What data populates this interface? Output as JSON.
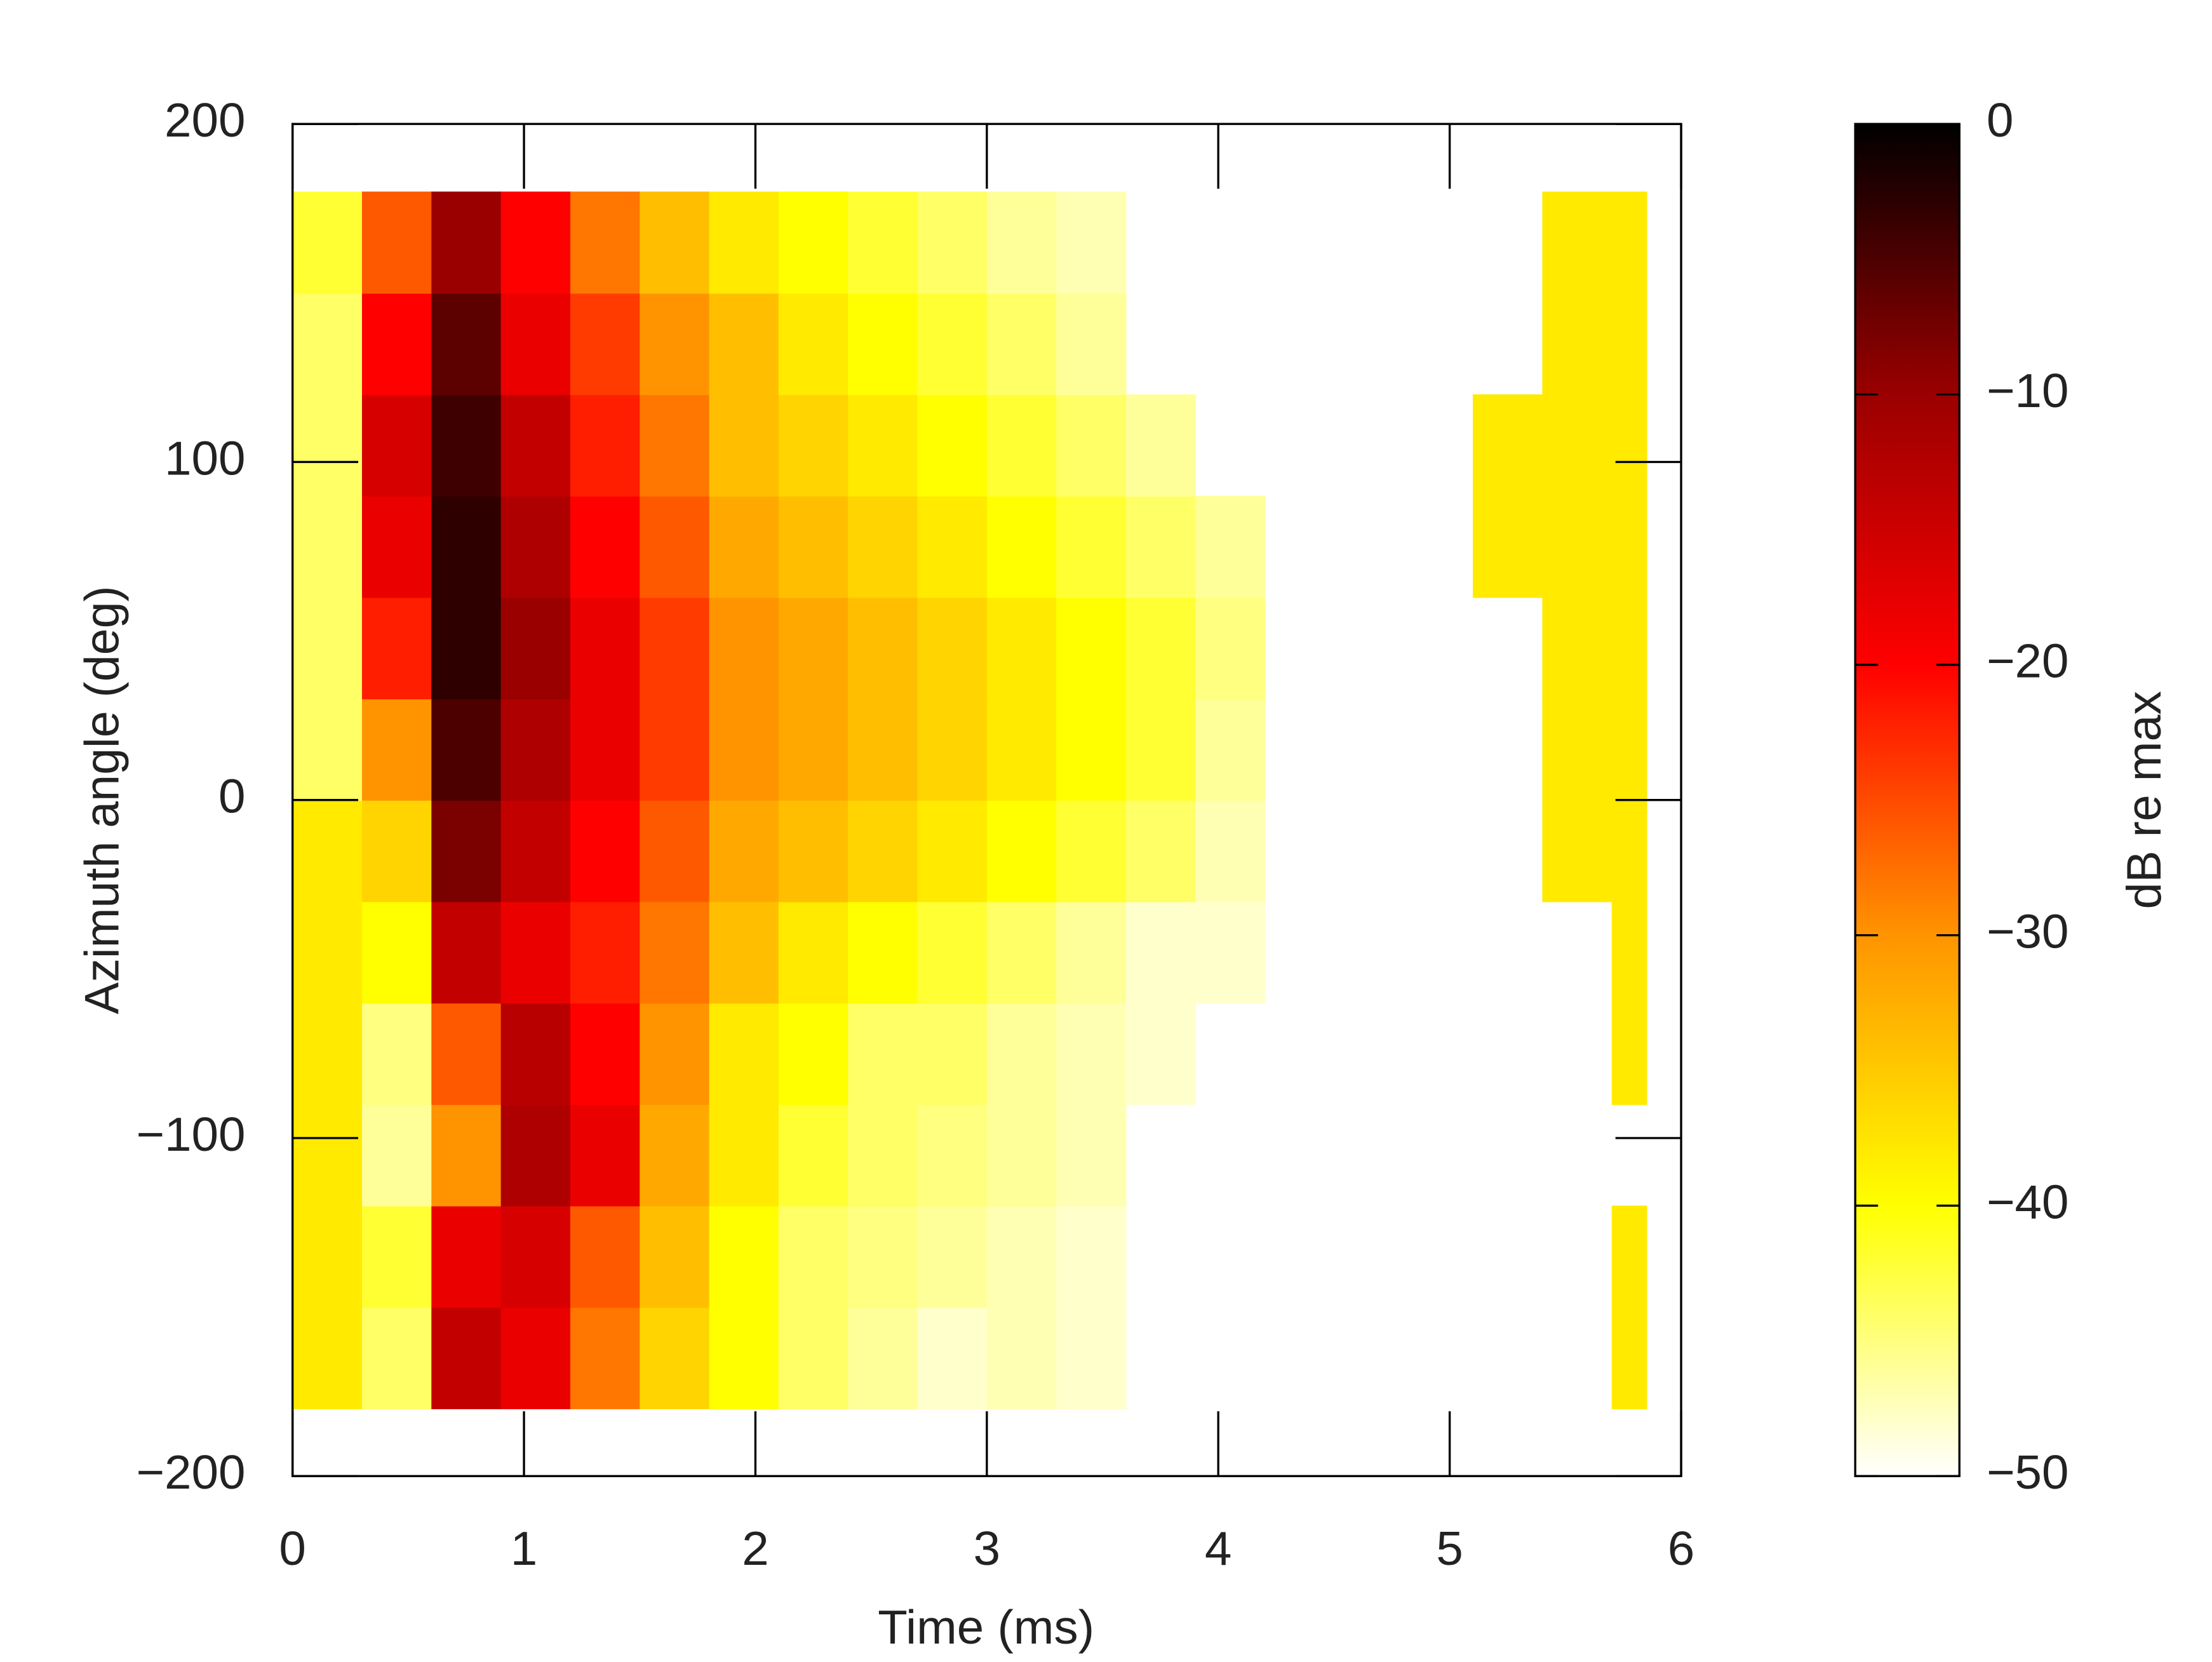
{
  "chart_data": {
    "type": "heatmap",
    "xlabel": "Time (ms)",
    "ylabel": "Azimuth angle (deg)",
    "colorbar_label": "dB re max",
    "xlim": [
      0,
      6
    ],
    "xticks": [
      0,
      1,
      2,
      3,
      4,
      5,
      6
    ],
    "ylim": [
      -200,
      200
    ],
    "yticks": [
      {
        "value": -200,
        "label": "−200"
      },
      {
        "value": -100,
        "label": "−100"
      },
      0,
      100,
      200
    ],
    "clim": [
      -50,
      0
    ],
    "cticks": [
      {
        "value": -50,
        "label": "−50"
      },
      {
        "value": -40,
        "label": "−40"
      },
      {
        "value": -30,
        "label": "−30"
      },
      {
        "value": -20,
        "label": "−20"
      },
      {
        "value": -10,
        "label": "−10"
      },
      0
    ],
    "colormap": [
      {
        "value": -50,
        "color": "#ffffff"
      },
      {
        "value": -40,
        "color": "#ffff00"
      },
      {
        "value": -30,
        "color": "#ff9400"
      },
      {
        "value": -20,
        "color": "#ff0000"
      },
      {
        "value": -10,
        "color": "#9a0000"
      },
      {
        "value": 0,
        "color": "#000000"
      }
    ],
    "x_edges": [
      0,
      0.3,
      0.6,
      0.9,
      1.2,
      1.5,
      1.8,
      2.1,
      2.4,
      2.7,
      3.0,
      3.3,
      3.6,
      3.9,
      4.2,
      4.5,
      4.8,
      5.1,
      5.4,
      5.7,
      5.85
    ],
    "y_edges": [
      -180,
      -150,
      -120,
      -90,
      -60,
      -30,
      0,
      30,
      60,
      90,
      120,
      150,
      180
    ],
    "z": [
      [
        -38,
        -44,
        -14,
        -18,
        -28,
        -36,
        -40,
        -44,
        -46,
        -48,
        -47,
        -48,
        null,
        null,
        null,
        null,
        null,
        null,
        null,
        -38
      ],
      [
        -38,
        -42,
        -18,
        -16,
        -26,
        -34,
        -40,
        -44,
        -45,
        -46,
        -47,
        -48,
        null,
        null,
        null,
        null,
        null,
        null,
        null,
        -38
      ],
      [
        -38,
        -46,
        -30,
        -12,
        -18,
        -32,
        -38,
        -42,
        -44,
        -45,
        -46,
        -47,
        null,
        null,
        null,
        null,
        null,
        null,
        null,
        null
      ],
      [
        -38,
        -45,
        -26,
        -13,
        -20,
        -30,
        -38,
        -40,
        -44,
        -44,
        -46,
        -47,
        -48,
        null,
        null,
        null,
        null,
        null,
        null,
        -38
      ],
      [
        -38,
        -40,
        -14,
        -18,
        -22,
        -28,
        -34,
        -38,
        -40,
        -42,
        -44,
        -46,
        -48,
        -48,
        null,
        null,
        null,
        null,
        null,
        -38
      ],
      [
        -38,
        -36,
        -8,
        -14,
        -20,
        -26,
        -32,
        -34,
        -36,
        -38,
        -40,
        -42,
        -44,
        -47,
        null,
        null,
        null,
        null,
        -38,
        -38
      ],
      [
        -44,
        -30,
        -5,
        -12,
        -18,
        -24,
        -30,
        -32,
        -34,
        -36,
        -38,
        -40,
        -42,
        -46,
        null,
        null,
        null,
        null,
        -38,
        -38
      ],
      [
        -44,
        -22,
        -3,
        -10,
        -18,
        -24,
        -30,
        -32,
        -34,
        -36,
        -38,
        -40,
        -42,
        -45,
        null,
        null,
        null,
        null,
        -38,
        -38
      ],
      [
        -44,
        -18,
        -3,
        -12,
        -20,
        -26,
        -32,
        -34,
        -36,
        -38,
        -40,
        -42,
        -44,
        -46,
        null,
        null,
        null,
        -38,
        -38,
        -38
      ],
      [
        -44,
        -16,
        -4,
        -14,
        -22,
        -28,
        -34,
        -36,
        -38,
        -40,
        -42,
        -44,
        -46,
        null,
        null,
        null,
        null,
        -38,
        -38,
        -38
      ],
      [
        -44,
        -20,
        -6,
        -18,
        -24,
        -30,
        -34,
        -38,
        -40,
        -42,
        -44,
        -46,
        null,
        null,
        null,
        null,
        null,
        null,
        -38,
        -38
      ],
      [
        -42,
        -26,
        -10,
        -20,
        -28,
        -34,
        -38,
        -40,
        -42,
        -44,
        -46,
        -47,
        null,
        null,
        null,
        null,
        null,
        null,
        -38,
        -38
      ]
    ]
  }
}
